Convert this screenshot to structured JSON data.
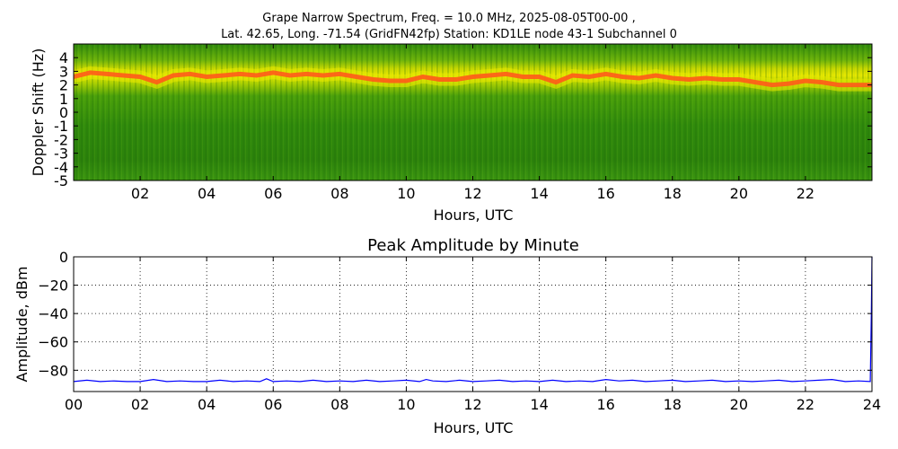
{
  "figure": {
    "title_line1": "Grape Narrow Spectrum, Freq. = 10.0 MHz, 2025-08-05T00-00 ,",
    "title_line2": "Lat.  42.65, Long. -71.54 (GridFN42fp) Station: KD1LE node 43-1 Subchannel 0"
  },
  "colors": {
    "spectrogram_background": "#2f8a0c",
    "spectrogram_band": "#e8e800",
    "spectrogram_peak": "#ff5a1a",
    "amplitude_line": "#0000ff",
    "grid": "#000000"
  },
  "chart_data": [
    {
      "type": "heatmap",
      "title": "",
      "xlabel": "Hours, UTC",
      "ylabel": "Doppler Shift (Hz)",
      "xlim": [
        0,
        24
      ],
      "ylim": [
        -5,
        5
      ],
      "x_ticks": [
        "02",
        "04",
        "06",
        "08",
        "10",
        "12",
        "14",
        "16",
        "18",
        "20",
        "22"
      ],
      "x_tick_values": [
        2,
        4,
        6,
        8,
        10,
        12,
        14,
        16,
        18,
        20,
        22
      ],
      "y_ticks": [
        "4",
        "3",
        "2",
        "1",
        "0",
        "-1",
        "-2",
        "-3",
        "-4",
        "-5"
      ],
      "y_tick_values": [
        4,
        3,
        2,
        1,
        0,
        -1,
        -2,
        -3,
        -4,
        -5
      ],
      "grid": false,
      "peak_doppler_hz": {
        "hours": [
          0,
          0.5,
          1,
          1.5,
          2,
          2.5,
          3,
          3.5,
          4,
          4.5,
          5,
          5.5,
          6,
          6.5,
          7,
          7.5,
          8,
          8.5,
          9,
          9.5,
          10,
          10.5,
          11,
          11.5,
          12,
          12.5,
          13,
          13.5,
          14,
          14.5,
          15,
          15.5,
          16,
          16.5,
          17,
          17.5,
          18,
          18.5,
          19,
          19.5,
          20,
          20.5,
          21,
          21.5,
          22,
          22.5,
          23,
          23.5,
          24
        ],
        "values": [
          2.6,
          2.9,
          2.8,
          2.7,
          2.6,
          2.2,
          2.7,
          2.8,
          2.6,
          2.7,
          2.8,
          2.7,
          2.9,
          2.7,
          2.8,
          2.7,
          2.8,
          2.6,
          2.4,
          2.3,
          2.3,
          2.6,
          2.4,
          2.4,
          2.6,
          2.7,
          2.8,
          2.6,
          2.6,
          2.2,
          2.7,
          2.6,
          2.8,
          2.6,
          2.5,
          2.7,
          2.5,
          2.4,
          2.5,
          2.4,
          2.4,
          2.2,
          2.0,
          2.1,
          2.3,
          2.2,
          2.0,
          2.0,
          2.0
        ]
      }
    },
    {
      "type": "line",
      "title": "Peak Amplitude by Minute",
      "xlabel": "Hours, UTC",
      "ylabel": "Amplitude, dBm",
      "xlim": [
        0,
        24
      ],
      "ylim": [
        -95,
        0
      ],
      "x_ticks": [
        "00",
        "02",
        "04",
        "06",
        "08",
        "10",
        "12",
        "14",
        "16",
        "18",
        "20",
        "22",
        "24"
      ],
      "x_tick_values": [
        0,
        2,
        4,
        6,
        8,
        10,
        12,
        14,
        16,
        18,
        20,
        22,
        24
      ],
      "y_ticks": [
        "0",
        "−20",
        "−40",
        "−60",
        "−80"
      ],
      "y_tick_values": [
        0,
        -20,
        -40,
        -60,
        -80
      ],
      "grid": true,
      "series": [
        {
          "x": [
            0,
            0.4,
            0.8,
            1.2,
            1.6,
            2.0,
            2.4,
            2.8,
            3.2,
            3.6,
            4.0,
            4.4,
            4.8,
            5.2,
            5.6,
            5.8,
            6.0,
            6.4,
            6.8,
            7.2,
            7.6,
            8.0,
            8.4,
            8.8,
            9.2,
            9.6,
            10.0,
            10.4,
            10.6,
            10.8,
            11.2,
            11.6,
            12.0,
            12.4,
            12.8,
            13.2,
            13.6,
            14.0,
            14.4,
            14.8,
            15.2,
            15.6,
            16.0,
            16.4,
            16.8,
            17.2,
            17.6,
            18.0,
            18.4,
            18.8,
            19.2,
            19.6,
            20.0,
            20.4,
            20.8,
            21.2,
            21.6,
            22.0,
            22.4,
            22.8,
            23.2,
            23.6,
            23.95,
            23.98,
            24.0
          ],
          "values": [
            -88,
            -87,
            -88,
            -87.5,
            -88,
            -88,
            -86.5,
            -88,
            -87.5,
            -88,
            -88,
            -87,
            -88,
            -87.5,
            -88,
            -86,
            -88,
            -87.5,
            -88,
            -87,
            -88,
            -87.5,
            -88,
            -87,
            -88,
            -87.5,
            -87,
            -88,
            -86.5,
            -87.5,
            -88,
            -87,
            -88,
            -87.5,
            -87,
            -88,
            -87.5,
            -88,
            -87,
            -88,
            -87.5,
            -88,
            -86.5,
            -87.5,
            -87,
            -88,
            -87.5,
            -87,
            -88,
            -87.5,
            -87,
            -88,
            -87.5,
            -88,
            -87.5,
            -87,
            -88,
            -87.5,
            -87,
            -86.5,
            -88,
            -87.5,
            -88,
            -40,
            0
          ]
        }
      ]
    }
  ]
}
